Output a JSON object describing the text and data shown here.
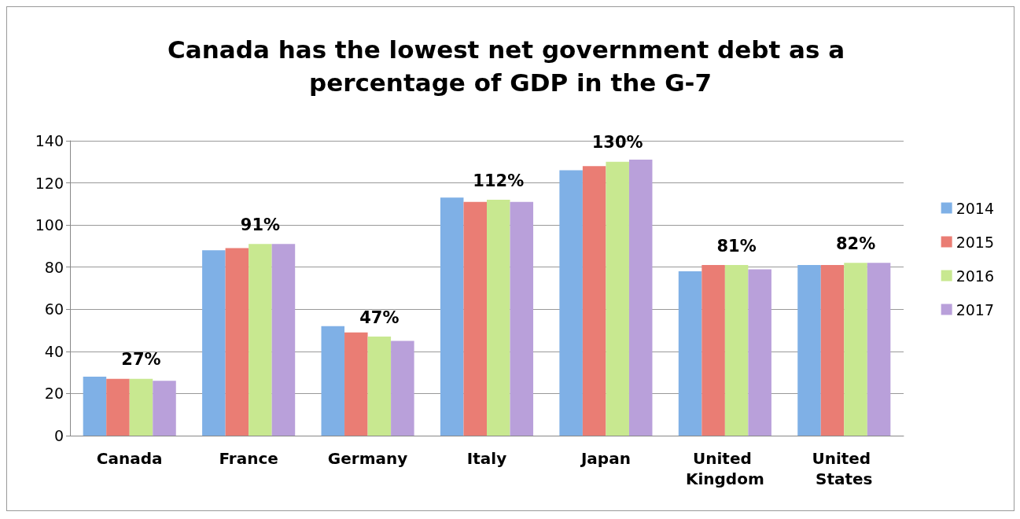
{
  "chart_data": {
    "type": "bar",
    "title": "Canada has the lowest net government debt as a percentage of GDP in the G-7",
    "categories": [
      "Canada",
      "France",
      "Germany",
      "Italy",
      "Japan",
      "United Kingdom",
      "United States"
    ],
    "series": [
      {
        "name": "2014",
        "color": "#7fb0e6",
        "values": [
          28,
          88,
          52,
          113,
          126,
          78,
          81
        ]
      },
      {
        "name": "2015",
        "color": "#ea7d74",
        "values": [
          27,
          89,
          49,
          111,
          128,
          81,
          81
        ]
      },
      {
        "name": "2016",
        "color": "#c8e890",
        "values": [
          27,
          91,
          47,
          112,
          130,
          81,
          82
        ],
        "value_labels": [
          "27%",
          "91%",
          "47%",
          "112%",
          "130%",
          "81%",
          "82%"
        ]
      },
      {
        "name": "2017",
        "color": "#b9a0da",
        "values": [
          26,
          91,
          45,
          111,
          131,
          79,
          82
        ]
      }
    ],
    "ylim": [
      0,
      140
    ],
    "yticks": [
      0,
      20,
      40,
      60,
      80,
      100,
      120,
      140
    ],
    "grid": "y",
    "legend": "right"
  }
}
